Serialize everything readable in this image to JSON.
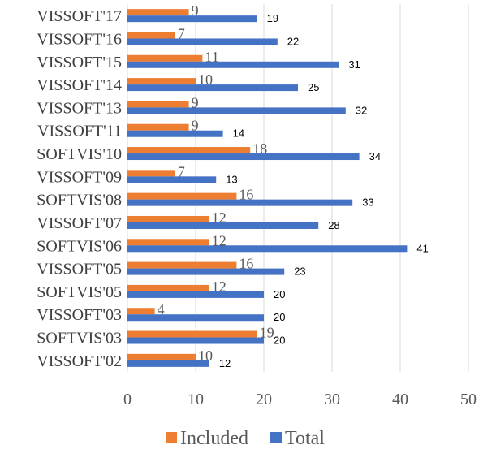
{
  "chart_data": {
    "type": "bar",
    "orientation": "horizontal",
    "categories": [
      "VISSOFT'17",
      "VISSOFT'16",
      "VISSOFT'15",
      "VISSOFT'14",
      "VISSOFT'13",
      "VISSOFT'11",
      "SOFTVIS'10",
      "VISSOFT'09",
      "SOFTVIS'08",
      "VISSOFT'07",
      "SOFTVIS'06",
      "VISSOFT'05",
      "SOFTVIS'05",
      "VISSOFT'03",
      "SOFTVIS'03",
      "VISSOFT'02"
    ],
    "series": [
      {
        "name": "Included",
        "color": "#ED7D31",
        "values": [
          9,
          7,
          11,
          10,
          9,
          9,
          18,
          7,
          16,
          12,
          12,
          16,
          12,
          4,
          19,
          10
        ]
      },
      {
        "name": "Total",
        "color": "#4472C4",
        "values": [
          19,
          22,
          31,
          25,
          32,
          14,
          34,
          13,
          33,
          28,
          41,
          23,
          20,
          20,
          20,
          12
        ]
      }
    ],
    "xlim": [
      0,
      50
    ],
    "xticks": [
      0,
      10,
      20,
      30,
      40,
      50
    ],
    "grid": true,
    "legend": "bottom-center",
    "title": "",
    "xlabel": "",
    "ylabel": ""
  }
}
